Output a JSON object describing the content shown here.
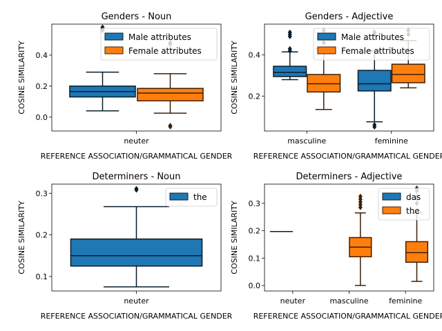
{
  "chart_data": [
    {
      "type": "box",
      "title": "Genders - Noun",
      "xlabel": "REFERENCE ASSOCIATION/GRAMMATICAL GENDER",
      "ylabel": "COSINE SIMILARITY",
      "ylim": [
        -0.09,
        0.6
      ],
      "yticks": [
        0.0,
        0.2,
        0.4
      ],
      "categories": [
        "neuter"
      ],
      "legend": "upper right",
      "series": [
        {
          "name": "Male attributes",
          "color": "#1f77b4",
          "boxes": [
            {
              "category": "neuter",
              "whislo": 0.04,
              "q1": 0.13,
              "med": 0.165,
              "q3": 0.2,
              "whishi": 0.29,
              "fliers": [
                0.57,
                0.58,
                0.56
              ]
            }
          ]
        },
        {
          "name": "Female attributes",
          "color": "#ff7f0e",
          "boxes": [
            {
              "category": "neuter",
              "whislo": 0.025,
              "q1": 0.105,
              "med": 0.155,
              "q3": 0.185,
              "whishi": 0.28,
              "fliers": [
                -0.055,
                -0.062,
                0.47,
                0.48
              ]
            }
          ]
        }
      ]
    },
    {
      "type": "box",
      "title": "Genders - Adjective",
      "xlabel": "REFERENCE ASSOCIATION/GRAMMATICAL GENDER",
      "ylabel": "COSINE SIMILARITY",
      "ylim": [
        0.03,
        0.55
      ],
      "yticks": [
        0.2,
        0.4
      ],
      "categories": [
        "masculine",
        "feminine"
      ],
      "legend": "upper right",
      "series": [
        {
          "name": "Male attributes",
          "color": "#1f77b4",
          "boxes": [
            {
              "category": "masculine",
              "whislo": 0.28,
              "q1": 0.295,
              "med": 0.315,
              "q3": 0.345,
              "whishi": 0.415,
              "fliers": [
                0.42,
                0.43,
                0.49,
                0.5,
                0.51
              ]
            },
            {
              "category": "feminine",
              "whislo": 0.075,
              "q1": 0.225,
              "med": 0.26,
              "q3": 0.325,
              "whishi": 0.42,
              "fliers": [
                0.05,
                0.06,
                0.5,
                0.51
              ]
            }
          ]
        },
        {
          "name": "Female attributes",
          "color": "#ff7f0e",
          "boxes": [
            {
              "category": "masculine",
              "whislo": 0.135,
              "q1": 0.22,
              "med": 0.26,
              "q3": 0.305,
              "whishi": 0.43,
              "fliers": [
                0.46,
                0.48,
                0.5,
                0.52
              ]
            },
            {
              "category": "feminine",
              "whislo": 0.24,
              "q1": 0.265,
              "med": 0.305,
              "q3": 0.355,
              "whishi": 0.47,
              "fliers": [
                0.5,
                0.52
              ]
            }
          ]
        }
      ]
    },
    {
      "type": "box",
      "title": "Determiners - Noun",
      "xlabel": "REFERENCE ASSOCIATION/GRAMMATICAL GENDER",
      "ylabel": "COSINE SIMILARITY",
      "ylim": [
        0.065,
        0.322
      ],
      "yticks": [
        0.1,
        0.2,
        0.3
      ],
      "categories": [
        "neuter"
      ],
      "legend": "upper right",
      "series": [
        {
          "name": "the",
          "color": "#1f77b4",
          "boxes": [
            {
              "category": "neuter",
              "whislo": 0.075,
              "q1": 0.125,
              "med": 0.15,
              "q3": 0.19,
              "whishi": 0.268,
              "fliers": [
                0.308,
                0.311
              ]
            }
          ]
        }
      ]
    },
    {
      "type": "box",
      "title": "Determiners - Adjective",
      "xlabel": "REFERENCE ASSOCIATION/GRAMMATICAL GENDER",
      "ylabel": "COSINE SIMILARITY",
      "ylim": [
        -0.02,
        0.37
      ],
      "yticks": [
        0.0,
        0.1,
        0.2,
        0.3
      ],
      "categories": [
        "neuter",
        "masculine",
        "feminine"
      ],
      "legend": "upper right",
      "series": [
        {
          "name": "das",
          "color": "#1f77b4",
          "boxes": [
            {
              "category": "neuter",
              "whislo": 0.197,
              "q1": 0.197,
              "med": 0.197,
              "q3": 0.197,
              "whishi": 0.197,
              "fliers": []
            }
          ]
        },
        {
          "name": "the",
          "color": "#ff7f0e",
          "boxes": [
            {
              "category": "masculine",
              "whislo": 0.0,
              "q1": 0.105,
              "med": 0.14,
              "q3": 0.175,
              "whishi": 0.265,
              "fliers": [
                0.285,
                0.295,
                0.305,
                0.315,
                0.325
              ]
            },
            {
              "category": "feminine",
              "whislo": 0.015,
              "q1": 0.085,
              "med": 0.12,
              "q3": 0.16,
              "whishi": 0.265,
              "fliers": [
                0.3,
                0.32,
                0.345,
                0.355
              ]
            }
          ]
        }
      ]
    }
  ]
}
